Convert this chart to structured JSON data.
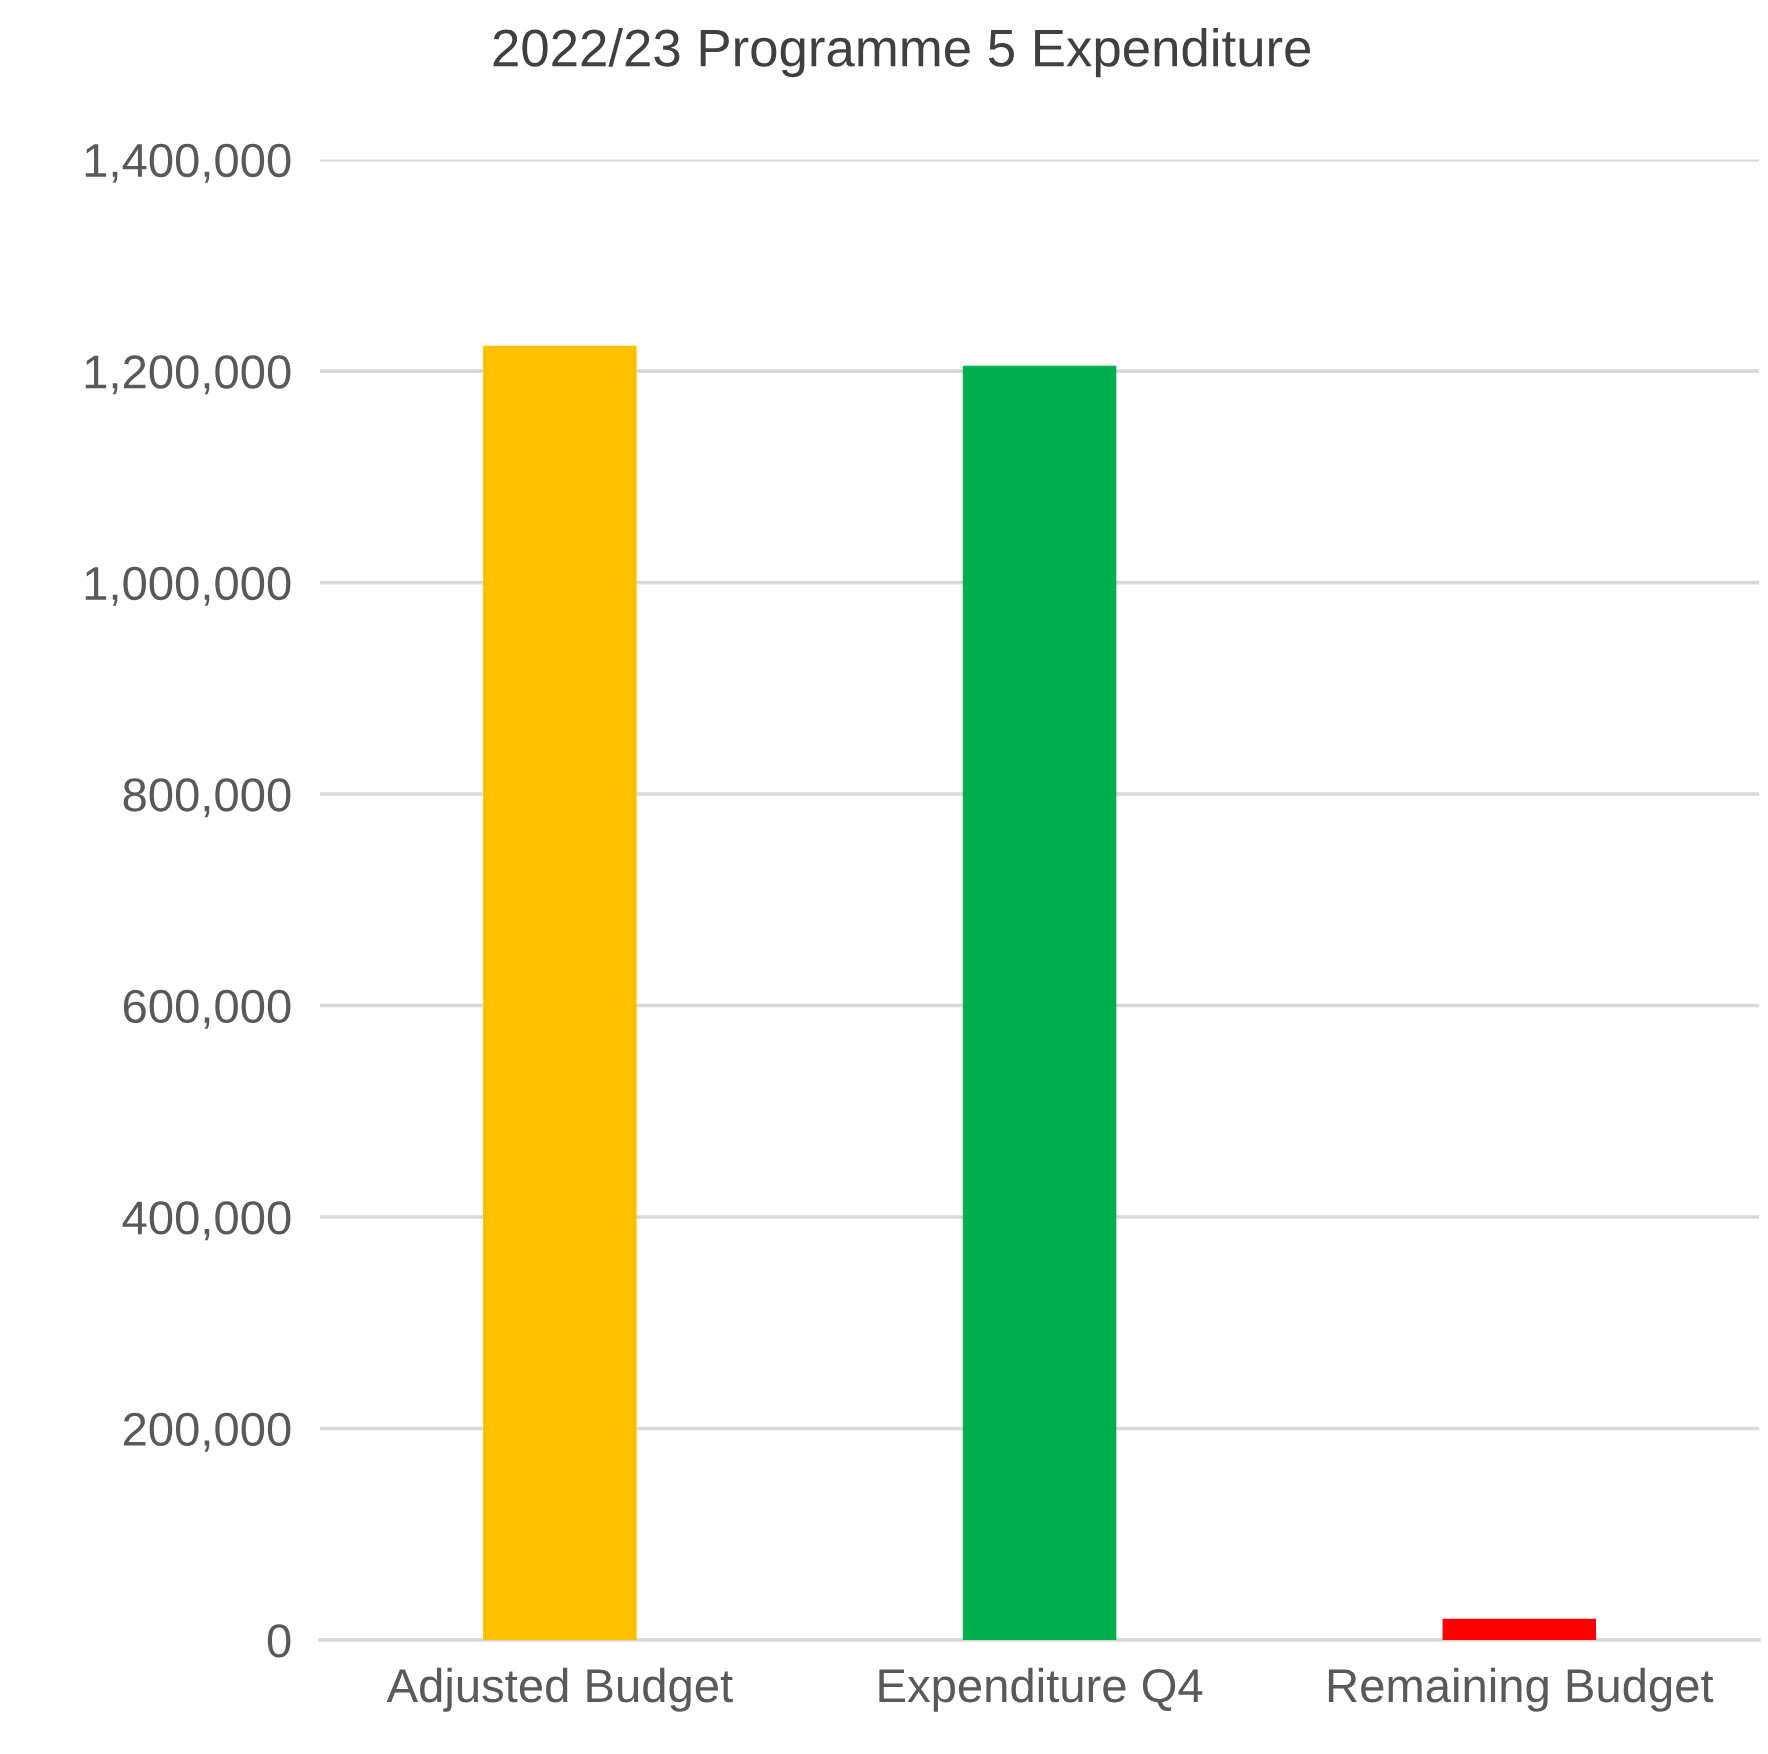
{
  "chart_data": {
    "type": "bar",
    "title": "2022/23 Programme 5 Expenditure",
    "categories": [
      "Adjusted Budget",
      "Expenditure Q4",
      "Remaining Budget"
    ],
    "values": [
      1224000,
      1205000,
      20000
    ],
    "colors": [
      "#ffc000",
      "#00b050",
      "#ff0000"
    ],
    "ylim": [
      0,
      1400000
    ],
    "yticks": [
      {
        "value": 0,
        "label": "0"
      },
      {
        "value": 200000,
        "label": "200,000"
      },
      {
        "value": 400000,
        "label": "400,000"
      },
      {
        "value": 600000,
        "label": "600,000"
      },
      {
        "value": 800000,
        "label": "800,000"
      },
      {
        "value": 1000000,
        "label": "1,000,000"
      },
      {
        "value": 1200000,
        "label": "1,200,000"
      },
      {
        "value": 1400000,
        "label": "1,400,000"
      }
    ],
    "grid": "y"
  }
}
